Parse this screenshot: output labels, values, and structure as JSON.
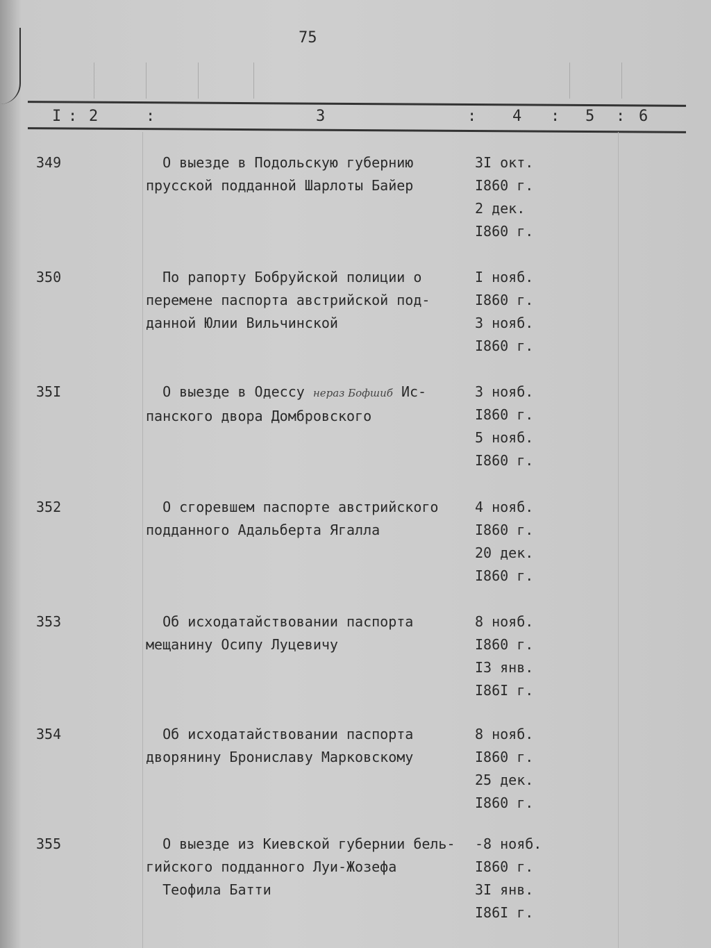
{
  "page_number": "75",
  "column_numbers": [
    "I",
    "2",
    "3",
    "4",
    "5",
    "6"
  ],
  "entries": [
    {
      "num": "349",
      "lines": [
        "  О выезде в Подольскую губернию",
        "прусской подданной Шарлоты Байер"
      ],
      "dates": [
        "3I окт.",
        "I860 г.",
        "2 дек.",
        "I860 г."
      ]
    },
    {
      "num": "350",
      "lines": [
        "  По рапорту Бобруйской полиции о",
        "перемене паспорта австрийской под-",
        "данной Юлии Вильчинской"
      ],
      "dates": [
        "I нояб.",
        "I860 г.",
        "3 нояб.",
        "I860 г."
      ]
    },
    {
      "num": "35I",
      "lines": [
        "  О выезде в Одессу ",
        "панского двора Домбровского"
      ],
      "handwritten": "нераз Бофшиб",
      "line1_end": "Ис-",
      "dates": [
        "3 нояб.",
        "I860 г.",
        "5 нояб.",
        "I860 г."
      ]
    },
    {
      "num": "352",
      "lines": [
        "  О сгоревшем паспорте австрийского",
        "подданного Адальберта Ягалла"
      ],
      "dates": [
        "4 нояб.",
        "I860 г.",
        "20 дек.",
        "I860 г."
      ]
    },
    {
      "num": "353",
      "lines": [
        "  Об исходатайствовании паспорта",
        "мещанину Осипу Луцевичу"
      ],
      "dates": [
        "8 нояб.",
        "I860 г.",
        "I3 янв.",
        "I86I г."
      ]
    },
    {
      "num": "354",
      "lines": [
        "  Об исходатайствовании паспорта",
        "дворянину Брониславу Марковскому"
      ],
      "dates": [
        "8 нояб.",
        "I860 г.",
        "25 дек.",
        "I860 г."
      ]
    },
    {
      "num": "355",
      "lines": [
        "  О выезде из Киевской губернии бель-",
        "гийского подданного Луи-Жозефа",
        "  Теофила Батти"
      ],
      "dates": [
        "-8 нояб.",
        "I860 г.",
        "3I янв.",
        "I86I г."
      ]
    }
  ]
}
